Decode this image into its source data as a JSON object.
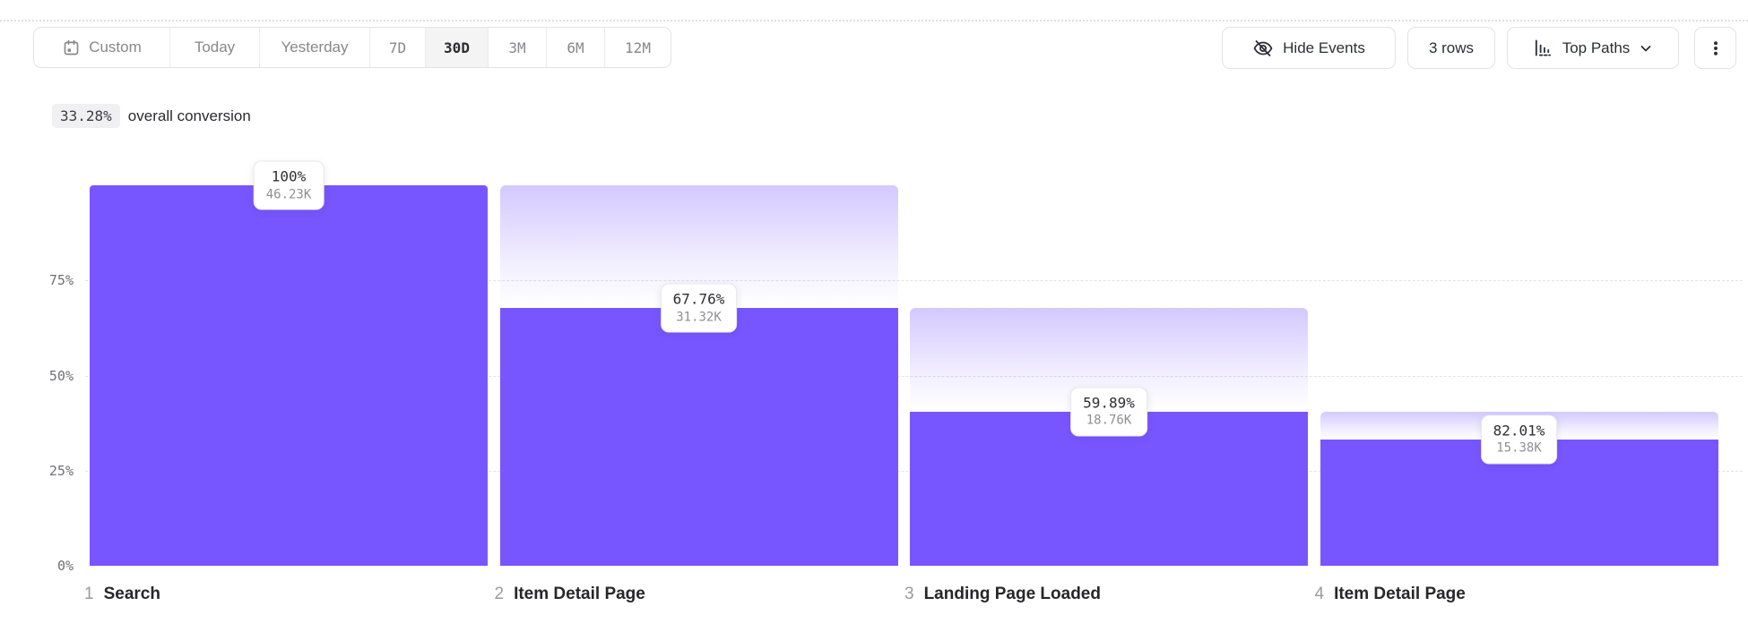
{
  "toolbar": {
    "date_ranges": [
      "Custom",
      "Today",
      "Yesterday",
      "7D",
      "30D",
      "3M",
      "6M",
      "12M"
    ],
    "selected_range": "30D",
    "hide_events_label": "Hide Events",
    "rows_label": "3 rows",
    "top_paths_label": "Top Paths"
  },
  "summary": {
    "value": "33.28%",
    "text": "overall conversion"
  },
  "chart_data": {
    "type": "bar",
    "subtype": "funnel",
    "title": "33.28% overall conversion",
    "yticks": [
      {
        "label": "0%",
        "value": 0
      },
      {
        "label": "25%",
        "value": 25
      },
      {
        "label": "50%",
        "value": 50
      },
      {
        "label": "75%",
        "value": 75
      }
    ],
    "ylim": [
      0,
      100
    ],
    "grid": "dashed horizontal at 25/50/75",
    "steps": [
      {
        "index": "1",
        "label": "Search",
        "conversion_from_previous": "100%",
        "count_label": "46.23K",
        "count": 46230
      },
      {
        "index": "2",
        "label": "Item Detail Page",
        "conversion_from_previous": "67.76%",
        "count_label": "31.32K",
        "count": 31320
      },
      {
        "index": "3",
        "label": "Landing Page Loaded",
        "conversion_from_previous": "59.89%",
        "count_label": "18.76K",
        "count": 18760
      },
      {
        "index": "4",
        "label": "Item Detail Page",
        "conversion_from_previous": "82.01%",
        "count_label": "15.38K",
        "count": 15380
      }
    ],
    "colors": {
      "bar": "#7856ff",
      "dropoff_top": "rgba(120,86,255,0.32)"
    }
  }
}
